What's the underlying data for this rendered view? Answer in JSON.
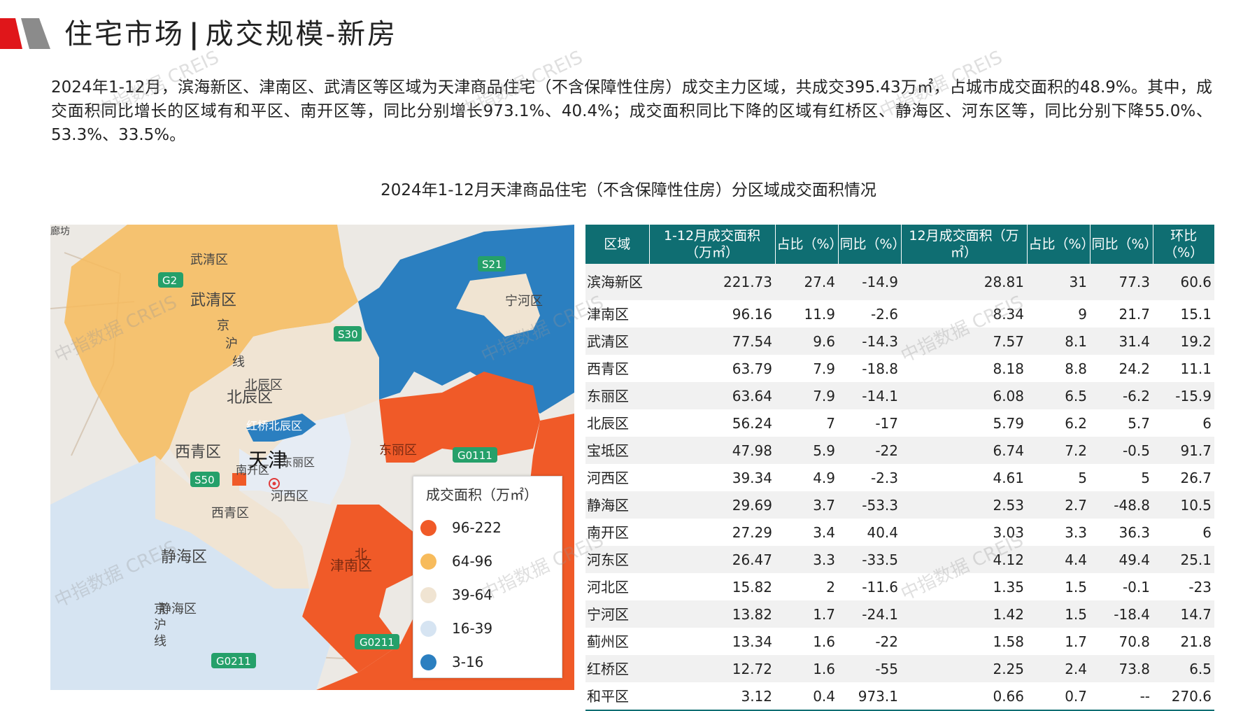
{
  "header": {
    "title_main": "住宅市场",
    "title_sep": "|",
    "title_sub": "成交规模-新房"
  },
  "summary": "2024年1-12月，滨海新区、津南区、武清区等区域为天津商品住宅（不含保障性住房）成交主力区域，共成交395.43万㎡，占城市成交面积的48.9%。其中，成交面积同比增长的区域有和平区、南开区等，同比分别增长973.1%、40.4%；成交面积同比下降的区域有红桥区、静海区、河东区等，同比分别下降55.0%、53.3%、33.5%。",
  "chart_title": "2024年1-12月天津商品住宅（不含保障性住房）分区域成交面积情况",
  "watermark": "中指数据 CREIS",
  "map": {
    "labels": {
      "langfang": "廊坊",
      "wuqing_small": "武清区",
      "wuqing": "武清区",
      "g2": "G2",
      "s21": "S21",
      "ninghe": "宁河区",
      "s30": "S30",
      "jinghu1": "京",
      "jinghu2": "沪",
      "jinghu3": "线",
      "beichen_small": "北辰区",
      "beichen": "北辰区",
      "hongqiao": "红桥北辰区",
      "xiqing": "西青区",
      "tianjin": "天津",
      "hedong": "东丽区",
      "nankai": "南开区",
      "dongli": "东丽区",
      "g0111": "G0111",
      "s50": "S50",
      "hexi": "河西区",
      "xiqing_small": "西青区",
      "jinghai": "静海区",
      "jinnan": "津南区",
      "jinnan_top": "北",
      "jinghai2": "静海区",
      "jinghu_b1": "京",
      "jinghu_b2": "沪",
      "jinghu_b3": "线",
      "g0211a": "G0211",
      "g0211b": "G0211"
    },
    "legend_title": "成交面积（万㎡）",
    "legend": [
      {
        "label": "96-222",
        "color": "#f05a28"
      },
      {
        "label": "64-96",
        "color": "#f7bb5c"
      },
      {
        "label": "39-64",
        "color": "#f0e4d2"
      },
      {
        "label": "16-39",
        "color": "#d6e4f2"
      },
      {
        "label": "3-16",
        "color": "#2b7fc0"
      }
    ]
  },
  "table": {
    "headers": [
      "区域",
      "1-12月成交面积（万㎡）",
      "占比（%）",
      "同比（%）",
      "12月成交面积（万㎡）",
      "占比（%）",
      "同比（%）",
      "环比（%）"
    ],
    "rows": [
      [
        "滨海新区",
        "221.73",
        "27.4",
        "-14.9",
        "28.81",
        "31",
        "77.3",
        "60.6"
      ],
      [
        "津南区",
        "96.16",
        "11.9",
        "-2.6",
        "8.34",
        "9",
        "21.7",
        "15.1"
      ],
      [
        "武清区",
        "77.54",
        "9.6",
        "-14.3",
        "7.57",
        "8.1",
        "31.4",
        "19.2"
      ],
      [
        "西青区",
        "63.79",
        "7.9",
        "-18.8",
        "8.18",
        "8.8",
        "24.2",
        "11.1"
      ],
      [
        "东丽区",
        "63.64",
        "7.9",
        "-14.1",
        "6.08",
        "6.5",
        "-6.2",
        "-15.9"
      ],
      [
        "北辰区",
        "56.24",
        "7",
        "-17",
        "5.79",
        "6.2",
        "5.7",
        "6"
      ],
      [
        "宝坻区",
        "47.98",
        "5.9",
        "-22",
        "6.74",
        "7.2",
        "-0.5",
        "91.7"
      ],
      [
        "河西区",
        "39.34",
        "4.9",
        "-2.3",
        "4.61",
        "5",
        "5",
        "26.7"
      ],
      [
        "静海区",
        "29.69",
        "3.7",
        "-53.3",
        "2.53",
        "2.7",
        "-48.8",
        "10.5"
      ],
      [
        "南开区",
        "27.29",
        "3.4",
        "40.4",
        "3.03",
        "3.3",
        "36.3",
        "6"
      ],
      [
        "河东区",
        "26.47",
        "3.3",
        "-33.5",
        "4.12",
        "4.4",
        "49.4",
        "25.1"
      ],
      [
        "河北区",
        "15.82",
        "2",
        "-11.6",
        "1.35",
        "1.5",
        "-0.1",
        "-23"
      ],
      [
        "宁河区",
        "13.82",
        "1.7",
        "-24.1",
        "1.42",
        "1.5",
        "-18.4",
        "14.7"
      ],
      [
        "蓟州区",
        "13.34",
        "1.6",
        "-22",
        "1.58",
        "1.7",
        "70.8",
        "21.8"
      ],
      [
        "红桥区",
        "12.72",
        "1.6",
        "-55",
        "2.25",
        "2.4",
        "73.8",
        "6.5"
      ],
      [
        "和平区",
        "3.12",
        "0.4",
        "973.1",
        "0.66",
        "0.7",
        "--",
        "270.6"
      ]
    ]
  }
}
